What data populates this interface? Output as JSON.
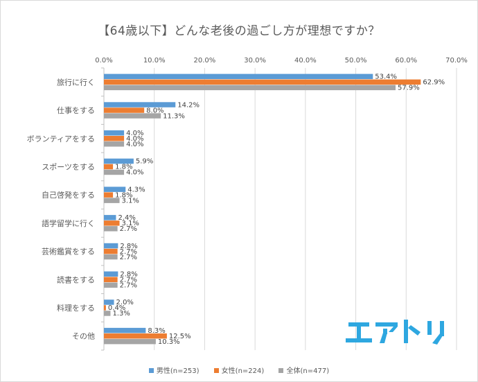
{
  "chart_data": {
    "type": "bar",
    "orientation": "horizontal",
    "title": "【64歳以下】どんな老後の過ごし方が理想ですか？",
    "xlim": [
      0,
      70
    ],
    "x_ticks": [
      "0.0%",
      "10.0%",
      "20.0%",
      "30.0%",
      "40.0%",
      "50.0%",
      "60.0%",
      "70.0%"
    ],
    "grid": true,
    "legend_position": "bottom",
    "categories": [
      "旅行に行く",
      "仕事をする",
      "ボランティアをする",
      "スポーツをする",
      "自己啓発をする",
      "語学留学に行く",
      "芸術鑑賞をする",
      "読書をする",
      "料理をする",
      "その他"
    ],
    "series": [
      {
        "name": "男性(n=253)",
        "color": "#5b9bd5",
        "values": [
          53.4,
          14.2,
          4.0,
          5.9,
          4.3,
          2.4,
          2.8,
          2.8,
          2.0,
          8.3
        ]
      },
      {
        "name": "女性(n=224)",
        "color": "#ed7d31",
        "values": [
          62.9,
          8.0,
          4.0,
          1.8,
          1.8,
          3.1,
          2.7,
          2.7,
          0.4,
          12.5
        ]
      },
      {
        "name": "全体(n=477)",
        "color": "#a5a5a5",
        "values": [
          57.9,
          11.3,
          4.0,
          4.0,
          3.1,
          2.7,
          2.7,
          2.7,
          1.3,
          10.3
        ]
      }
    ]
  },
  "logo": {
    "text": "エアトリ",
    "color": "#2ea7e0"
  }
}
